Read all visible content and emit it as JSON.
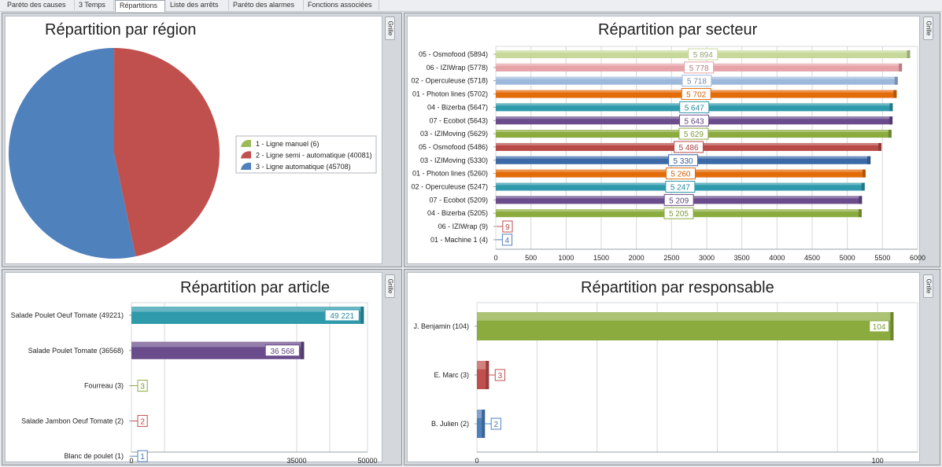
{
  "tabs": [
    {
      "label": "Paréto des causes",
      "active": false
    },
    {
      "label": "3 Temps",
      "active": false
    },
    {
      "label": "Répartitions",
      "active": true
    },
    {
      "label": "Liste des arrêts",
      "active": false
    },
    {
      "label": "Paréto des alarmes",
      "active": false
    },
    {
      "label": "Fonctions associées",
      "active": false
    }
  ],
  "grille_label": "Grille",
  "colors": {
    "green": "#8bab3f",
    "red": "#c0504d",
    "blue": "#4f81bd",
    "pink": "#e6a3a8",
    "lightblue": "#9cb9dc",
    "orange": "#e36c0a",
    "teal": "#2e9aac",
    "purple": "#6a4c8c",
    "lightgreen": "#c6d99a",
    "navy": "#3c6aa8"
  },
  "chart_data": [
    {
      "type": "pie",
      "title": "Répartition par région",
      "legend_position": "right",
      "slices": [
        {
          "label": "1 - Ligne manuel (6)",
          "value": 6,
          "color": "#9bbb59"
        },
        {
          "label": "2 - Ligne semi - automatique (40081)",
          "value": 40081,
          "color": "#c0504d"
        },
        {
          "label": "3 - Ligne automatique (45708)",
          "value": 45708,
          "color": "#4f81bd"
        }
      ]
    },
    {
      "type": "bar",
      "orientation": "horizontal",
      "title": "Répartition par secteur",
      "xlim": [
        0,
        6000
      ],
      "xticks": [
        0,
        500,
        1000,
        1500,
        2000,
        2500,
        3000,
        3500,
        4000,
        4500,
        5000,
        5500,
        6000
      ],
      "categories": [
        "05 - Osmofood (5894)",
        "06 - IZIWrap (5778)",
        "02 - Operculeuse (5718)",
        "01 - Photon lines (5702)",
        "04 - Bizerba (5647)",
        "07 - Ecobot (5643)",
        "03 - IZIMoving (5629)",
        "05 - Osmofood (5486)",
        "03 - IZIMoving (5330)",
        "01 - Photon lines (5260)",
        "02 - Operculeuse (5247)",
        "07 - Ecobot (5209)",
        "04 - Bizerba (5205)",
        "06 - IZIWrap (9)",
        "01 - Machine 1 (4)"
      ],
      "values": [
        5894,
        5778,
        5718,
        5702,
        5647,
        5643,
        5629,
        5486,
        5330,
        5260,
        5247,
        5209,
        5205,
        9,
        4
      ],
      "data_labels": [
        "5 894",
        "5 778",
        "5 718",
        "5 702",
        "5 647",
        "5 643",
        "5 629",
        "5 486",
        "5 330",
        "5 260",
        "5 247",
        "5 209",
        "5 205",
        "9",
        "4"
      ],
      "colors": [
        "#c6d99a",
        "#e6a3a8",
        "#9cb9dc",
        "#e36c0a",
        "#2e9aac",
        "#6a4c8c",
        "#8bab3f",
        "#b84a47",
        "#3c6aa8",
        "#e36c0a",
        "#2e9aac",
        "#6a4c8c",
        "#8bab3f",
        "#c0504d",
        "#4f81bd"
      ]
    },
    {
      "type": "bar",
      "orientation": "horizontal",
      "title": "Répartition par article",
      "xlim": [
        0,
        50000
      ],
      "xticks": [
        0,
        35000,
        50000
      ],
      "categories": [
        "Salade Poulet Oeuf Tomate (49221)",
        "Salade Poulet Tomate (36568)",
        "Fourreau (3)",
        "Salade Jambon Oeuf Tomate (2)",
        "Blanc de poulet (1)"
      ],
      "values": [
        49221,
        36568,
        3,
        2,
        1
      ],
      "data_labels": [
        "49 221",
        "36 568",
        "3",
        "2",
        "1"
      ],
      "colors": [
        "#2e9aac",
        "#6a4c8c",
        "#8bab3f",
        "#c0504d",
        "#4f81bd"
      ]
    },
    {
      "type": "bar",
      "orientation": "horizontal",
      "title": "Répartition par responsable",
      "xlim": [
        0,
        110
      ],
      "xticks": [
        0,
        100
      ],
      "categories": [
        "J. Benjamin (104)",
        "E. Marc (3)",
        "B. Julien (2)"
      ],
      "values": [
        104,
        3,
        2
      ],
      "data_labels": [
        "104",
        "3",
        "2"
      ],
      "colors": [
        "#8bab3f",
        "#c0504d",
        "#4f81bd"
      ]
    }
  ]
}
